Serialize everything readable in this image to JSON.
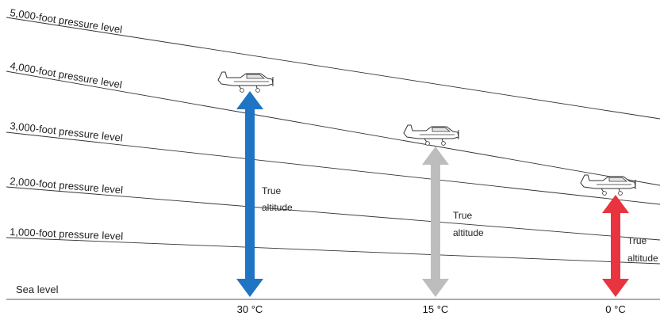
{
  "pressure_levels": [
    {
      "label": "5,000-foot pressure level"
    },
    {
      "label": "4,000-foot pressure level"
    },
    {
      "label": "3,000-foot pressure level"
    },
    {
      "label": "2,000-foot pressure level"
    },
    {
      "label": "1,000-foot pressure level"
    }
  ],
  "sea_level": {
    "label": "Sea level"
  },
  "columns": [
    {
      "temperature": "30 °C",
      "label_line1": "True",
      "label_line2": "altitude",
      "color": "#1f74c4"
    },
    {
      "temperature": "15 °C",
      "label_line1": "True",
      "label_line2": "altitude",
      "color": "#bdbdbd"
    },
    {
      "temperature": "0 °C",
      "label_line1": "True",
      "label_line2": "altitude",
      "color": "#e8343e"
    }
  ]
}
